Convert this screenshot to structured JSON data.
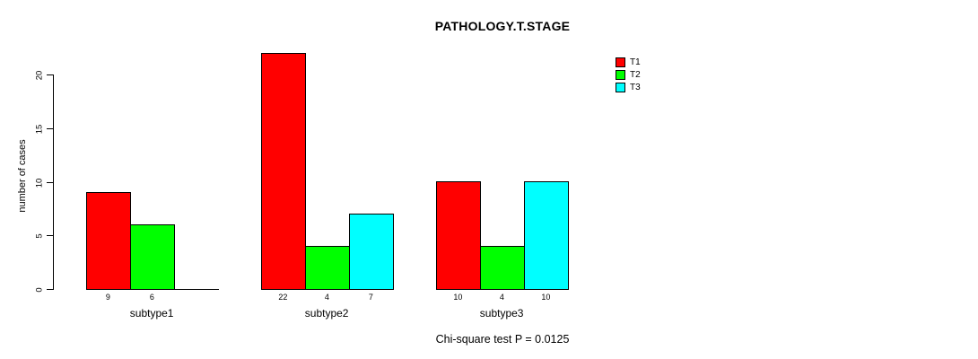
{
  "chart_data": {
    "type": "bar",
    "title": "PATHOLOGY.T.STAGE",
    "ylabel": "number of cases",
    "xlabel": "",
    "categories": [
      "subtype1",
      "subtype2",
      "subtype3"
    ],
    "series": [
      {
        "name": "T1",
        "color": "#FF0000",
        "values": [
          9,
          22,
          10
        ]
      },
      {
        "name": "T2",
        "color": "#00FF00",
        "values": [
          6,
          4,
          4
        ]
      },
      {
        "name": "T3",
        "color": "#00FFFF",
        "values": [
          0,
          7,
          10
        ]
      }
    ],
    "yticks": [
      0,
      5,
      10,
      15,
      20
    ],
    "ylim": [
      0,
      22
    ],
    "bar_value_labels_shown": true,
    "zero_value_labels_hidden": true,
    "legend_position": "topright",
    "grid": false,
    "background_color": "#FFFFFF",
    "axis_color": "#000000",
    "annotation": "Chi-square test P = 0.0125"
  }
}
